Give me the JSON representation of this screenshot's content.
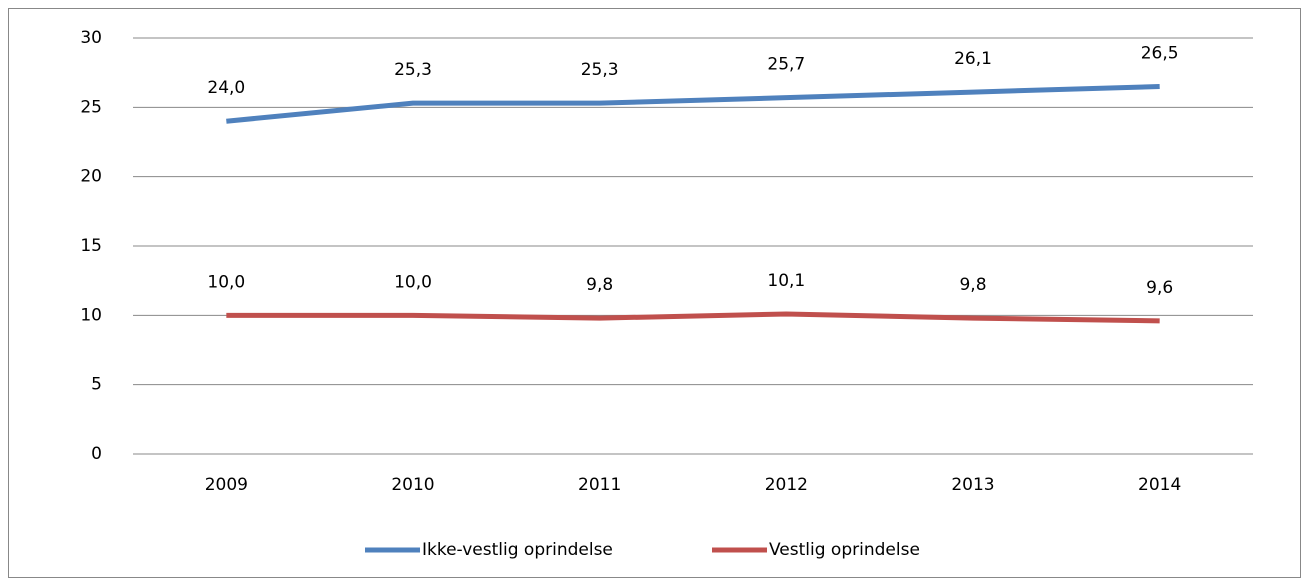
{
  "chart_data": {
    "type": "line",
    "categories": [
      "2009",
      "2010",
      "2011",
      "2012",
      "2013",
      "2014"
    ],
    "series": [
      {
        "name": "Ikke-vestlig oprindelse",
        "color": "#4f81bd",
        "values": [
          24.0,
          25.3,
          25.3,
          25.7,
          26.1,
          26.5
        ],
        "value_labels": [
          "24,0",
          "25,3",
          "25,3",
          "25,7",
          "26,1",
          "26,5"
        ]
      },
      {
        "name": "Vestlig oprindelse",
        "color": "#c0504d",
        "values": [
          10.0,
          10.0,
          9.8,
          10.1,
          9.8,
          9.6
        ],
        "value_labels": [
          "10,0",
          "10,0",
          "9,8",
          "10,1",
          "9,8",
          "9,6"
        ]
      }
    ],
    "ylim": [
      0,
      30
    ],
    "yticks": [
      0,
      5,
      10,
      15,
      20,
      25,
      30
    ],
    "grid": true,
    "legend": "bottom"
  }
}
